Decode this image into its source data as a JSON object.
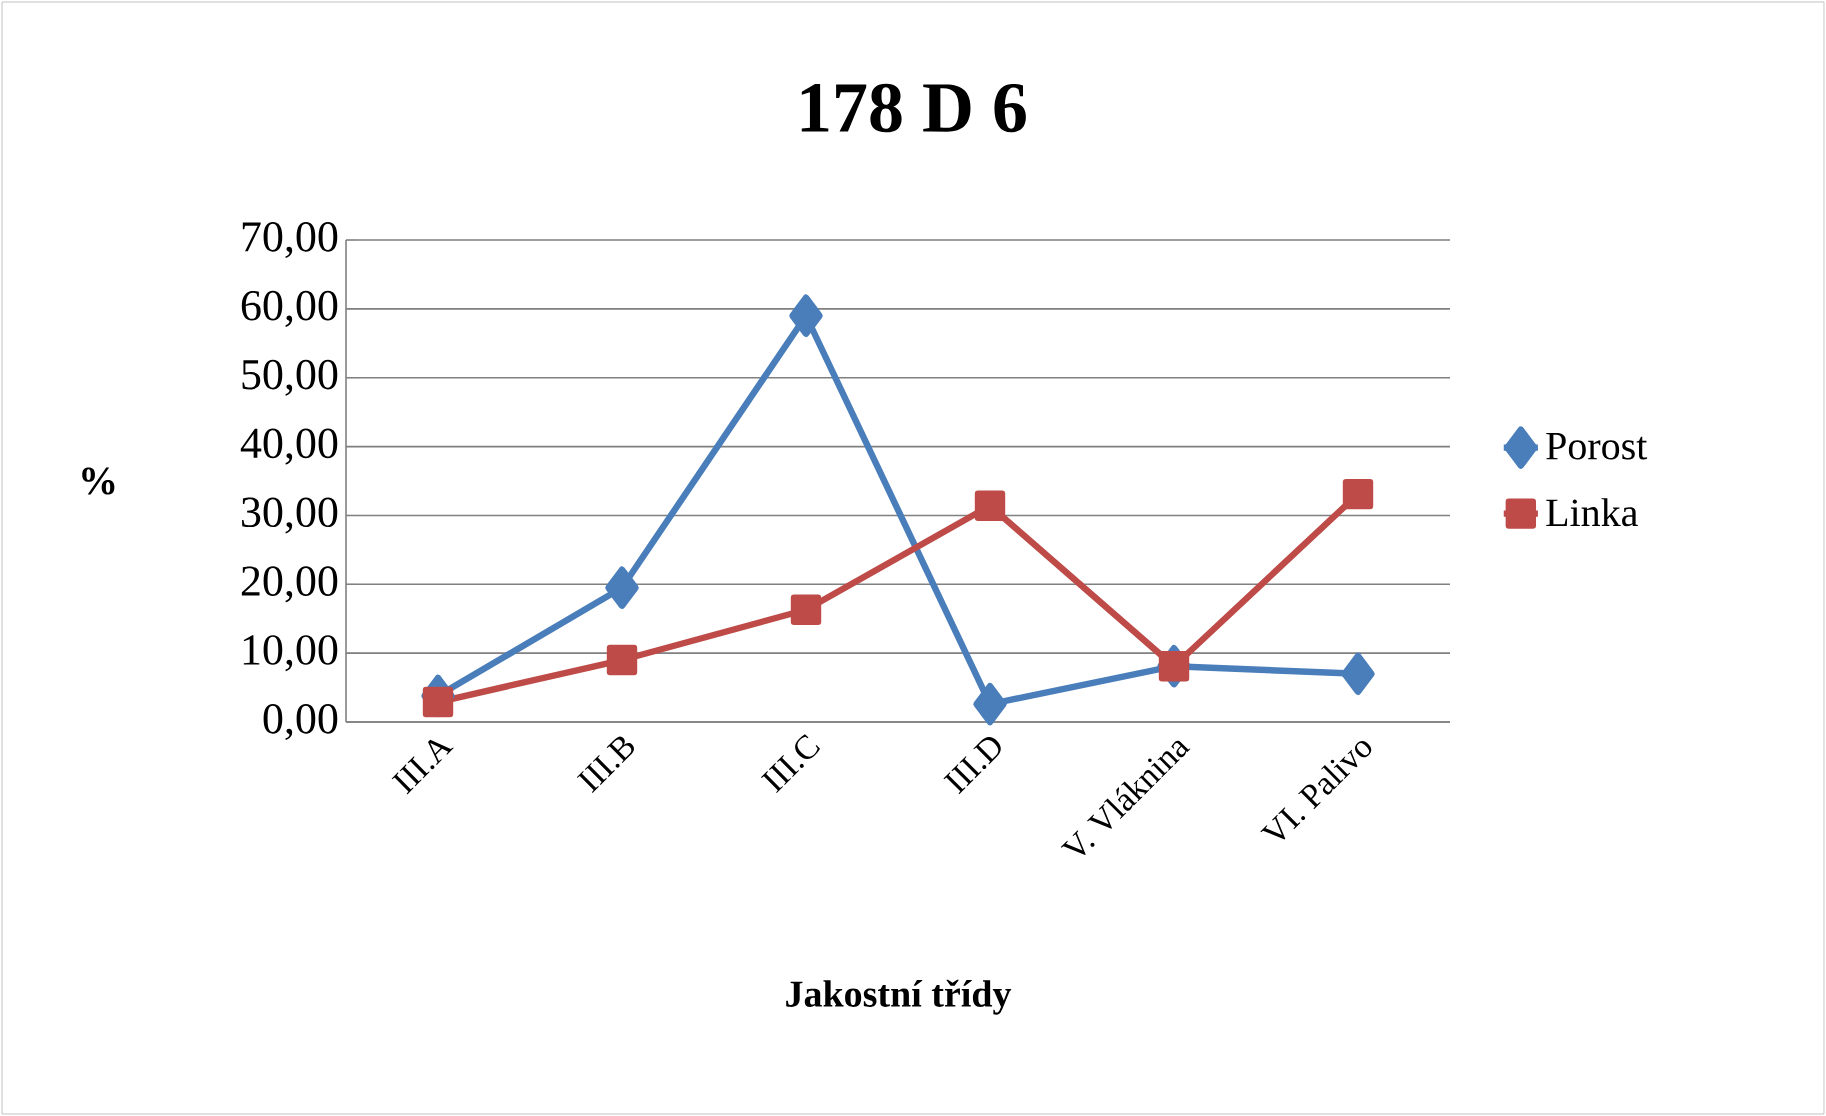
{
  "chart_data": {
    "type": "line",
    "title": "178 D 6",
    "xlabel": "Jakostní třídy",
    "ylabel": "%",
    "categories": [
      "III.A",
      "III.B",
      "III.C",
      "III.D",
      "V. Vláknina",
      "VI. Palivo"
    ],
    "series": [
      {
        "name": "Porost",
        "color": "#4a7ebb",
        "marker": "diamond",
        "values": [
          3.8,
          19.5,
          59.0,
          2.6,
          8.1,
          7.0
        ]
      },
      {
        "name": "Linka",
        "color": "#be4b48",
        "marker": "square",
        "values": [
          2.9,
          9.0,
          16.3,
          31.4,
          8.1,
          33.1
        ]
      }
    ],
    "ylim": [
      0,
      70
    ],
    "yticks": [
      {
        "value": 0,
        "label": "0,00"
      },
      {
        "value": 10,
        "label": "10,00"
      },
      {
        "value": 20,
        "label": "20,00"
      },
      {
        "value": 30,
        "label": "30,00"
      },
      {
        "value": 40,
        "label": "40,00"
      },
      {
        "value": 50,
        "label": "50,00"
      },
      {
        "value": 60,
        "label": "60,00"
      },
      {
        "value": 70,
        "label": "70,00"
      }
    ],
    "grid": "y",
    "legend": "right",
    "line_style": "solid"
  }
}
